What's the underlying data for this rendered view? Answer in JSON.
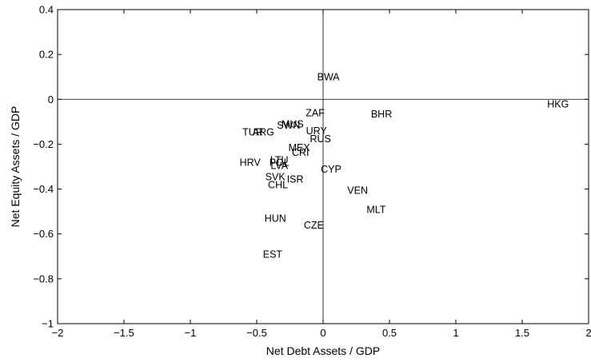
{
  "chart_data": {
    "type": "scatter",
    "title": "",
    "xlabel": "Net Debt Assets / GDP",
    "ylabel": "Net Equity Assets / GDP",
    "xlim": [
      -2,
      2
    ],
    "ylim": [
      -1,
      0.4
    ],
    "xticks": [
      -2,
      -1.5,
      -1,
      -0.5,
      0,
      0.5,
      1,
      1.5,
      2
    ],
    "yticks": [
      -1,
      -0.8,
      -0.6,
      -0.4,
      -0.2,
      0,
      0.2,
      0.4
    ],
    "xtick_labels": [
      "−2",
      "−1.5",
      "−1",
      "−0.5",
      "0",
      "0.5",
      "1",
      "1.5",
      "2"
    ],
    "ytick_labels": [
      "−1",
      "−0.8",
      "−0.6",
      "−0.4",
      "−0.2",
      "0",
      "0.2",
      "0.4"
    ],
    "grid": false,
    "reference_lines": {
      "x": 0,
      "y": 0
    },
    "marker": "text-label",
    "points": [
      {
        "label": "BWA",
        "x": 0.04,
        "y": 0.1
      },
      {
        "label": "HKG",
        "x": 1.77,
        "y": -0.02
      },
      {
        "label": "ZAF",
        "x": -0.06,
        "y": -0.06
      },
      {
        "label": "BHR",
        "x": 0.44,
        "y": -0.065
      },
      {
        "label": "MUS",
        "x": -0.23,
        "y": -0.11
      },
      {
        "label": "SWN",
        "x": -0.26,
        "y": -0.115
      },
      {
        "label": "URY",
        "x": -0.05,
        "y": -0.14
      },
      {
        "label": "TUR",
        "x": -0.53,
        "y": -0.145
      },
      {
        "label": "ARG",
        "x": -0.45,
        "y": -0.145
      },
      {
        "label": "RUS",
        "x": -0.02,
        "y": -0.175
      },
      {
        "label": "MEX",
        "x": -0.18,
        "y": -0.215
      },
      {
        "label": "CRI",
        "x": -0.17,
        "y": -0.235
      },
      {
        "label": "HRV",
        "x": -0.55,
        "y": -0.28
      },
      {
        "label": "LTU",
        "x": -0.33,
        "y": -0.27
      },
      {
        "label": "POL",
        "x": -0.33,
        "y": -0.28
      },
      {
        "label": "LVA",
        "x": -0.33,
        "y": -0.295
      },
      {
        "label": "CYP",
        "x": 0.06,
        "y": -0.31
      },
      {
        "label": "SVK",
        "x": -0.36,
        "y": -0.345
      },
      {
        "label": "ISR",
        "x": -0.21,
        "y": -0.355
      },
      {
        "label": "CHL",
        "x": -0.34,
        "y": -0.38
      },
      {
        "label": "VEN",
        "x": 0.26,
        "y": -0.405
      },
      {
        "label": "MLT",
        "x": 0.4,
        "y": -0.49
      },
      {
        "label": "HUN",
        "x": -0.36,
        "y": -0.53
      },
      {
        "label": "CZE",
        "x": -0.07,
        "y": -0.56
      },
      {
        "label": "EST",
        "x": -0.38,
        "y": -0.69
      }
    ]
  }
}
